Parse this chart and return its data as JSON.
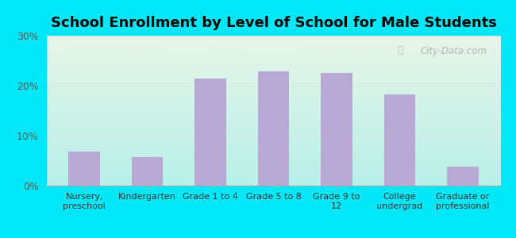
{
  "title": "School Enrollment by Level of School for Male Students",
  "categories": [
    "Nursery,\npreschool",
    "Kindergarten",
    "Grade 1 to 4",
    "Grade 5 to 8",
    "Grade 9 to\n12",
    "College\nundergrad",
    "Graduate or\nprofessional"
  ],
  "values": [
    6.8,
    5.7,
    21.5,
    22.8,
    22.5,
    18.2,
    3.8
  ],
  "bar_color": "#b8a8d4",
  "background_outer": "#00e8f8",
  "background_top": "#e8f5e8",
  "background_bottom": "#b8f0e8",
  "ylim": [
    0,
    30
  ],
  "yticks": [
    0,
    10,
    20,
    30
  ],
  "ytick_labels": [
    "0%",
    "10%",
    "20%",
    "30%"
  ],
  "title_fontsize": 13,
  "tick_fontsize": 9,
  "xtick_fontsize": 8,
  "watermark": "City-Data.com",
  "grid_color": "#dddddd",
  "grid_linewidth": 0.6
}
